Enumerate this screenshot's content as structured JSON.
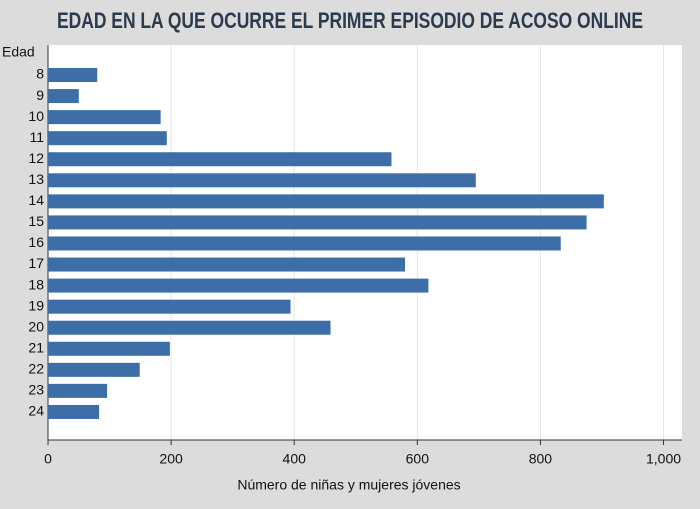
{
  "chart_data": {
    "type": "barh",
    "title": "EDAD EN LA QUE OCURRE EL PRIMER EPISODIO DE ACOSO ONLINE",
    "y_label": "Edad",
    "x_label": "Número de niñas y mujeres jóvenes",
    "categories": [
      "8",
      "9",
      "10",
      "11",
      "12",
      "13",
      "14",
      "15",
      "16",
      "17",
      "18",
      "19",
      "20",
      "21",
      "22",
      "23",
      "24"
    ],
    "values": [
      80,
      50,
      183,
      193,
      558,
      695,
      903,
      875,
      833,
      580,
      618,
      394,
      459,
      198,
      149,
      96,
      83
    ],
    "color": "#3d6ea8",
    "xlim": [
      0,
      1030
    ],
    "xticks": [
      0,
      200,
      400,
      600,
      800,
      {
        "value": 1000,
        "label": "1,000"
      }
    ],
    "grid": true
  }
}
